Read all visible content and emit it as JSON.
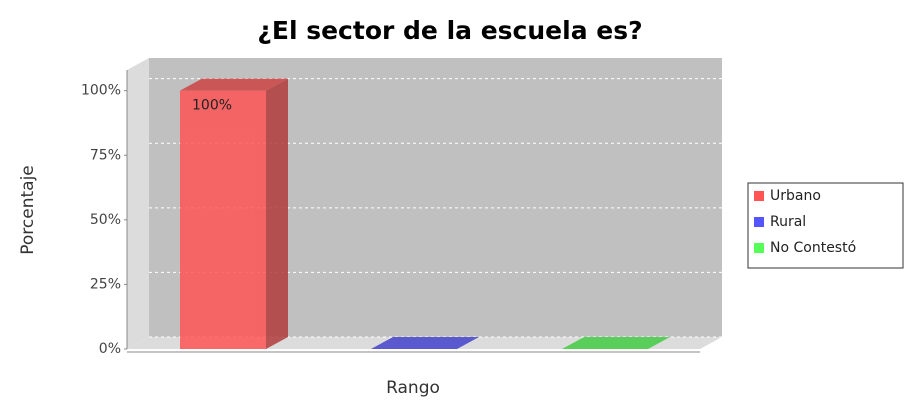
{
  "chart_data": {
    "type": "bar3d",
    "title": "¿El sector de la escuela es?",
    "x_label": "Rango",
    "y_label": "Porcentaje",
    "categories": [
      null
    ],
    "series": [
      {
        "name": "Urbano",
        "color": "#ff5555",
        "values": [
          100
        ],
        "value_labels": [
          "100%"
        ]
      },
      {
        "name": "Rural",
        "color": "#5555ff",
        "values": [
          0
        ]
      },
      {
        "name": "No Contestó",
        "color": "#55ff55",
        "values": [
          0
        ]
      }
    ],
    "ylim": [
      0,
      108
    ],
    "yticks": [
      {
        "value": 0,
        "label": "0%"
      },
      {
        "value": 25,
        "label": "25%"
      },
      {
        "value": 50,
        "label": "50%"
      },
      {
        "value": 75,
        "label": "75%"
      },
      {
        "value": 100,
        "label": "100%"
      }
    ],
    "grid": true,
    "legend": "right"
  }
}
